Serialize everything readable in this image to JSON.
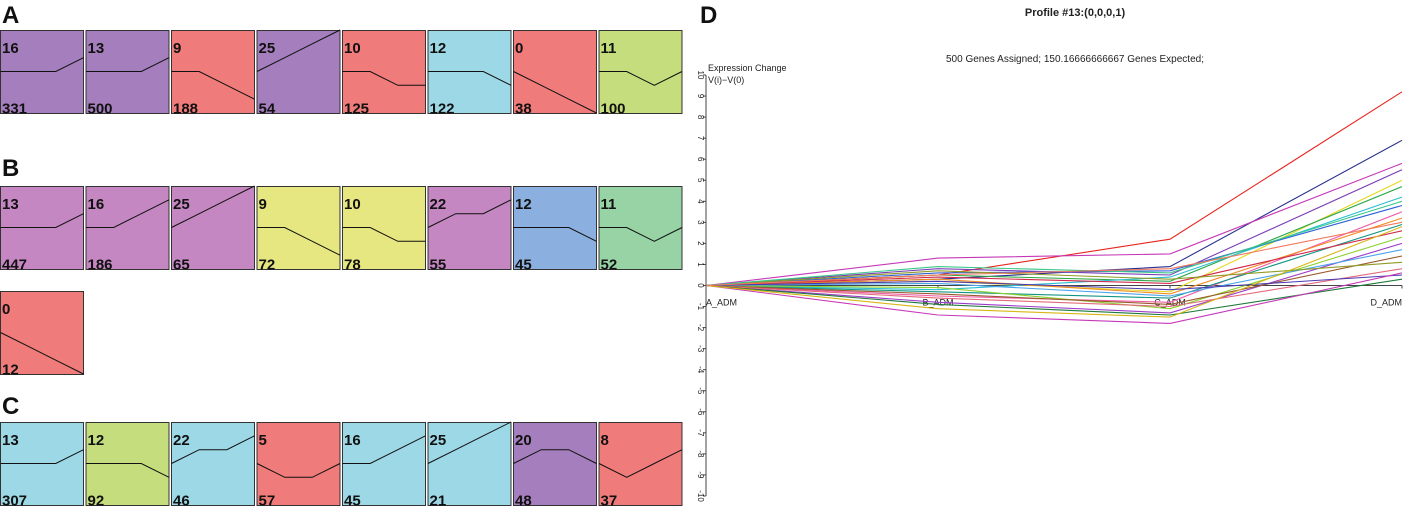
{
  "panels": {
    "a": "A",
    "b": "B",
    "c": "C",
    "d": "D"
  },
  "chart_data": [
    {
      "type": "profile-grid",
      "panel": "A",
      "profiles": [
        {
          "id": "16",
          "genes": "331",
          "pattern": [
            0,
            0,
            0,
            1
          ],
          "color": "#a57fbd"
        },
        {
          "id": "13",
          "genes": "500",
          "pattern": [
            0,
            0,
            0,
            1
          ],
          "color": "#a57fbd"
        },
        {
          "id": "9",
          "genes": "188",
          "pattern": [
            0,
            0,
            -1,
            -2
          ],
          "color": "#f07b7b"
        },
        {
          "id": "25",
          "genes": "54",
          "pattern": [
            0,
            1,
            2,
            3
          ],
          "color": "#a57fbd"
        },
        {
          "id": "10",
          "genes": "125",
          "pattern": [
            0,
            0,
            -1,
            -1
          ],
          "color": "#f07b7b"
        },
        {
          "id": "12",
          "genes": "122",
          "pattern": [
            0,
            0,
            0,
            -1
          ],
          "color": "#9dd8e6"
        },
        {
          "id": "0",
          "genes": "38",
          "pattern": [
            0,
            -1,
            -2,
            -3
          ],
          "color": "#f07b7b"
        },
        {
          "id": "11",
          "genes": "100",
          "pattern": [
            0,
            0,
            -1,
            0
          ],
          "color": "#c5dd7c"
        }
      ]
    },
    {
      "type": "profile-grid",
      "panel": "B",
      "profiles": [
        {
          "id": "13",
          "genes": "447",
          "pattern": [
            0,
            0,
            0,
            1
          ],
          "color": "#c487c1"
        },
        {
          "id": "16",
          "genes": "186",
          "pattern": [
            0,
            0,
            1,
            2
          ],
          "color": "#c487c1"
        },
        {
          "id": "25",
          "genes": "65",
          "pattern": [
            0,
            1,
            2,
            3
          ],
          "color": "#c487c1"
        },
        {
          "id": "9",
          "genes": "72",
          "pattern": [
            0,
            0,
            -1,
            -2
          ],
          "color": "#e6e781"
        },
        {
          "id": "10",
          "genes": "78",
          "pattern": [
            0,
            0,
            -1,
            -1
          ],
          "color": "#e6e781"
        },
        {
          "id": "22",
          "genes": "55",
          "pattern": [
            0,
            1,
            1,
            2
          ],
          "color": "#c487c1"
        },
        {
          "id": "12",
          "genes": "45",
          "pattern": [
            0,
            0,
            0,
            -1
          ],
          "color": "#8bafdf"
        },
        {
          "id": "11",
          "genes": "52",
          "pattern": [
            0,
            0,
            -1,
            0
          ],
          "color": "#97d3a5"
        },
        {
          "id": "0",
          "genes": "12",
          "pattern": [
            0,
            -1,
            -2,
            -3
          ],
          "color": "#f07b7b"
        }
      ]
    },
    {
      "type": "profile-grid",
      "panel": "C",
      "profiles": [
        {
          "id": "13",
          "genes": "307",
          "pattern": [
            0,
            0,
            0,
            1
          ],
          "color": "#9dd8e6"
        },
        {
          "id": "12",
          "genes": "92",
          "pattern": [
            0,
            0,
            0,
            -1
          ],
          "color": "#c5dd7c"
        },
        {
          "id": "22",
          "genes": "46",
          "pattern": [
            0,
            1,
            1,
            2
          ],
          "color": "#9dd8e6"
        },
        {
          "id": "5",
          "genes": "57",
          "pattern": [
            0,
            -1,
            -1,
            0
          ],
          "color": "#f07b7b"
        },
        {
          "id": "16",
          "genes": "45",
          "pattern": [
            0,
            0,
            1,
            2
          ],
          "color": "#9dd8e6"
        },
        {
          "id": "25",
          "genes": "21",
          "pattern": [
            0,
            1,
            2,
            3
          ],
          "color": "#9dd8e6"
        },
        {
          "id": "20",
          "genes": "48",
          "pattern": [
            0,
            1,
            1,
            0
          ],
          "color": "#a57fbd"
        },
        {
          "id": "8",
          "genes": "37",
          "pattern": [
            0,
            -1,
            0,
            1
          ],
          "color": "#f07b7b"
        }
      ]
    },
    {
      "type": "line",
      "panel": "D",
      "title": "Profile #13:(0,0,0,1)",
      "subtitle": "500 Genes Assigned; 150.16666666667 Genes Expected;",
      "ylabel_line1": "Expression Change",
      "ylabel_line2": "V(i)−V(0)",
      "categories": [
        "A_ADM",
        "B_ADM",
        "C_ADM",
        "D_ADM"
      ],
      "ylim": [
        -10,
        10
      ],
      "yticks": [
        "10",
        "9",
        "8",
        "7",
        "6",
        "5",
        "4",
        "3",
        "2",
        "1",
        "0",
        "-1",
        "-2",
        "-3",
        "-4",
        "-5",
        "-6",
        "-7",
        "-8",
        "-9",
        "-10"
      ],
      "series": [
        {
          "name": "red",
          "values": [
            0,
            0.5,
            2.2,
            9.2
          ],
          "color": "#e8231d"
        },
        {
          "name": "navy",
          "values": [
            0,
            0.3,
            0.9,
            6.9
          ],
          "color": "#2a2f8f"
        },
        {
          "name": "magenta-high",
          "values": [
            0,
            1.3,
            1.5,
            5.8
          ],
          "color": "#c638b8"
        },
        {
          "name": "violet",
          "values": [
            0,
            0.8,
            0.5,
            5.5
          ],
          "color": "#7b3fb5"
        },
        {
          "name": "yellow",
          "values": [
            0,
            0.2,
            -0.3,
            5.0
          ],
          "color": "#e6d822"
        },
        {
          "name": "green",
          "values": [
            0,
            0.5,
            0.2,
            4.7
          ],
          "color": "#2ea84a"
        },
        {
          "name": "cyan",
          "values": [
            0,
            -0.2,
            0.4,
            4.2
          ],
          "color": "#2bbfd0"
        },
        {
          "name": "blue",
          "values": [
            0,
            0.6,
            0.7,
            3.8
          ],
          "color": "#2f62d6"
        },
        {
          "name": "pink",
          "values": [
            0,
            -0.5,
            -0.8,
            3.5
          ],
          "color": "#ef5da8"
        },
        {
          "name": "orange",
          "values": [
            0,
            0.3,
            -0.4,
            3.2
          ],
          "color": "#f08a22"
        },
        {
          "name": "teal",
          "values": [
            0,
            -0.3,
            -0.6,
            2.9
          ],
          "color": "#129683"
        },
        {
          "name": "crimson",
          "values": [
            0,
            0.4,
            0.1,
            2.6
          ],
          "color": "#d12a4c"
        },
        {
          "name": "lime",
          "values": [
            0,
            -0.1,
            -1.1,
            2.3
          ],
          "color": "#8bd22f"
        },
        {
          "name": "purple",
          "values": [
            0,
            -0.8,
            -1.3,
            2.0
          ],
          "color": "#9b3bc9"
        },
        {
          "name": "sky",
          "values": [
            0,
            0.1,
            -0.5,
            1.7
          ],
          "color": "#4aa3ea"
        },
        {
          "name": "brown",
          "values": [
            0,
            -0.4,
            -0.9,
            1.4
          ],
          "color": "#9b5a2c"
        },
        {
          "name": "olive",
          "values": [
            0,
            0.7,
            0.3,
            1.1
          ],
          "color": "#8f9b27"
        },
        {
          "name": "rose",
          "values": [
            0,
            -0.6,
            -1.0,
            0.8
          ],
          "color": "#e26a7a"
        },
        {
          "name": "indigo",
          "values": [
            0,
            0.2,
            -0.2,
            0.5
          ],
          "color": "#4b3bb0"
        },
        {
          "name": "forest",
          "values": [
            0,
            -0.9,
            -1.4,
            0.3
          ],
          "color": "#1e7a3a"
        },
        {
          "name": "magenta-low",
          "values": [
            0,
            -1.4,
            -1.8,
            0.6
          ],
          "color": "#c638b8"
        },
        {
          "name": "gold",
          "values": [
            0,
            -1.1,
            -1.5,
            2.8
          ],
          "color": "#d8b614"
        },
        {
          "name": "mint",
          "values": [
            0,
            0.9,
            0.6,
            4.0
          ],
          "color": "#39c88a"
        },
        {
          "name": "salmon",
          "values": [
            0,
            0.5,
            0.8,
            3.0
          ],
          "color": "#f2785c"
        }
      ]
    }
  ]
}
